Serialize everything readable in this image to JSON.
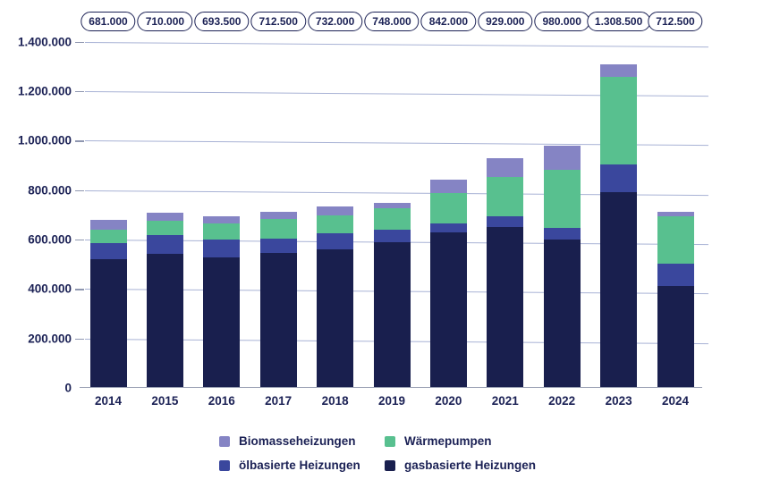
{
  "chart_data": {
    "type": "bar",
    "stacked": true,
    "title": "",
    "xlabel": "",
    "ylabel": "",
    "grid": true,
    "ylim": [
      0,
      1400000
    ],
    "categories": [
      "2014",
      "2015",
      "2016",
      "2017",
      "2018",
      "2019",
      "2020",
      "2021",
      "2022",
      "2023",
      "2024"
    ],
    "series": [
      {
        "name": "gasbasierte Heizungen",
        "color": "#191F4E",
        "values": [
          522000,
          543000,
          527000,
          545000,
          561000,
          588000,
          627000,
          651000,
          600000,
          790500,
          413000
        ]
      },
      {
        "name": "ölbasierte Heizungen",
        "color": "#3A479D",
        "values": [
          64000,
          74000,
          72000,
          60000,
          62500,
          50000,
          39000,
          44500,
          46000,
          112500,
          87500
        ]
      },
      {
        "name": "Wärmepumpen",
        "color": "#58C08F",
        "values": [
          52000,
          60000,
          67000,
          77500,
          75000,
          88000,
          120000,
          156000,
          236000,
          356000,
          193000
        ]
      },
      {
        "name": "Biomasseheizungen",
        "color": "#8584C4",
        "values": [
          43000,
          33000,
          27500,
          30000,
          33500,
          22000,
          56000,
          77500,
          98000,
          49500,
          19000
        ]
      }
    ],
    "totals": [
      681000,
      710000,
      693500,
      712500,
      732000,
      748000,
      842000,
      929000,
      980000,
      1308500,
      712500
    ],
    "totals_labels": [
      "681.000",
      "710.000",
      "693.500",
      "712.500",
      "732.000",
      "748.000",
      "842.000",
      "929.000",
      "980.000",
      "1.308.500",
      "712.500"
    ],
    "y_ticks": [
      {
        "value": 0,
        "label": "0"
      },
      {
        "value": 200000,
        "label": "200.000"
      },
      {
        "value": 400000,
        "label": "400.000"
      },
      {
        "value": 600000,
        "label": "600.000"
      },
      {
        "value": 800000,
        "label": "800.000"
      },
      {
        "value": 1000000,
        "label": "1.000.000"
      },
      {
        "value": 1200000,
        "label": "1.200.000"
      },
      {
        "value": 1400000,
        "label": "1.400.000"
      }
    ],
    "legend": [
      {
        "label": "Biomasseheizungen",
        "color": "#8584C4"
      },
      {
        "label": "Wärmepumpen",
        "color": "#58C08F"
      },
      {
        "label": "ölbasierte Heizungen",
        "color": "#3A479D"
      },
      {
        "label": "gasbasierte Heizungen",
        "color": "#191F4E"
      }
    ],
    "legend_position": "bottom",
    "colors": {
      "text": "#1B2155",
      "gridline": "#A8B2D5",
      "axis_line": "#9AA1B4",
      "pill_border": "#1B2155",
      "background": "#FFFFFF"
    }
  }
}
